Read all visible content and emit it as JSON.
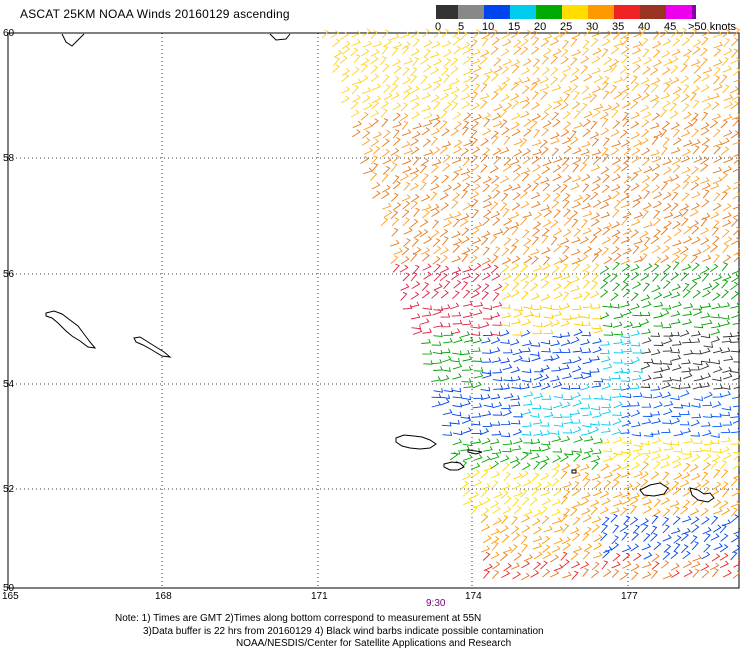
{
  "title": "ASCAT 25KM NOAA Winds 20160129 ascending",
  "legend": {
    "ticks": [
      "0",
      "5",
      "10",
      "15",
      "20",
      "25",
      "30",
      "35",
      "40",
      "45",
      ">50 knots"
    ],
    "colors": [
      "#333333",
      "#888888",
      "#0044ee",
      "#00ccee",
      "#00aa00",
      "#ffdd00",
      "#ff9900",
      "#ee2222",
      "#993322",
      "#ee00ee",
      "#8800aa"
    ]
  },
  "map": {
    "lat_labels": [
      "60",
      "58",
      "56",
      "54",
      "52",
      "50"
    ],
    "lon_labels": [
      "165",
      "168",
      "171",
      "174",
      "177"
    ]
  },
  "time_label": "9:30",
  "notes": {
    "line1": "Note: 1) Times are GMT 2)Times along bottom correspond to measurement at 55N",
    "line2": "3)Data buffer is 22 hrs from 20160129 4) Black wind barbs indicate possible contamination",
    "line3": "NOAA/NESDIS/Center for Satellite Applications and Research"
  }
}
